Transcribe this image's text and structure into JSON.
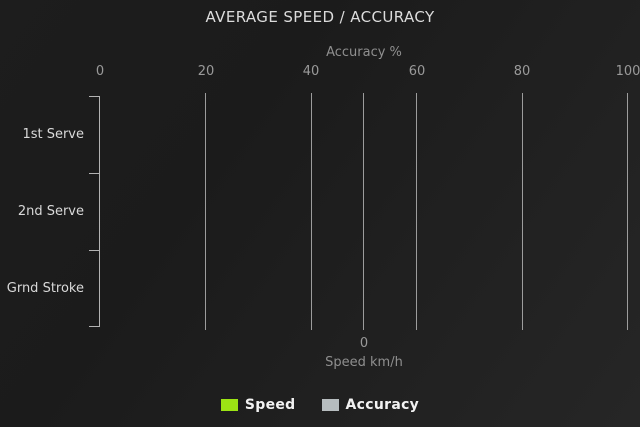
{
  "chart_data": {
    "type": "bar",
    "orientation": "horizontal",
    "title": "AVERAGE SPEED / ACCURACY",
    "categories": [
      "1st Serve",
      "2nd Serve",
      "Grnd Stroke"
    ],
    "series": [
      {
        "name": "Speed",
        "color": "#9ce414",
        "axis": "bottom",
        "values": [
          0,
          0,
          0
        ]
      },
      {
        "name": "Accuracy",
        "color": "#b6bcbe",
        "axis": "top",
        "values": [
          0,
          0,
          0
        ]
      }
    ],
    "top_axis": {
      "label": "Accuracy %",
      "ticks": [
        "0",
        "20",
        "40",
        "60",
        "80",
        "100"
      ],
      "range": [
        0,
        100
      ]
    },
    "bottom_axis": {
      "label": "Speed km/h",
      "ticks": [
        "0"
      ]
    },
    "legend": {
      "position": "bottom",
      "entries": [
        "Speed",
        "Accuracy"
      ]
    },
    "grid": true,
    "colors": {
      "background": "#1f1f1f",
      "gridline": "#b3b3b3",
      "title_text": "#dcdcdc",
      "axis_label_text": "#8f8f8f",
      "tick_text": "#9a9a9a",
      "category_text": "#d9d9d9",
      "legend_text": "#f2f2f2"
    }
  }
}
